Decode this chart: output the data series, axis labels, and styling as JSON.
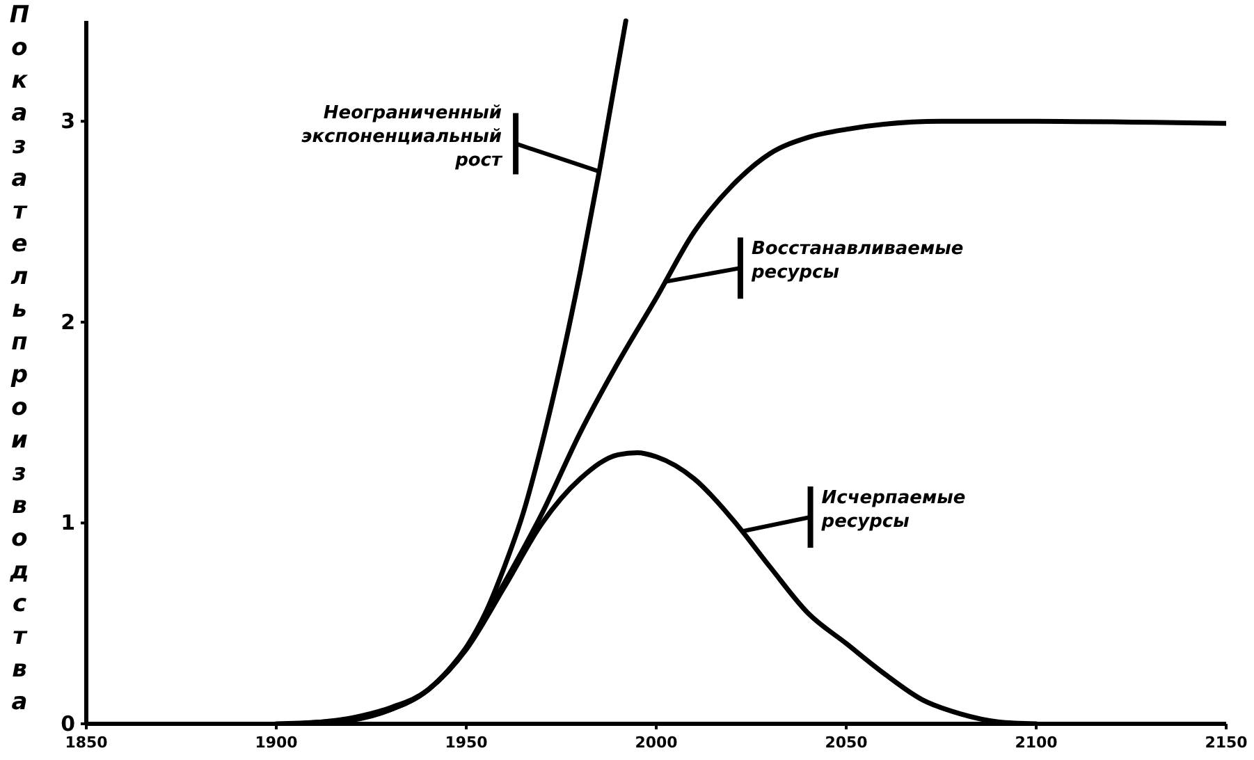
{
  "chart_data": {
    "type": "line",
    "ylabel": "Показатель производства",
    "xlim": [
      1850,
      2150
    ],
    "ylim": [
      0,
      3.5
    ],
    "xticks": [
      1850,
      1900,
      1950,
      2000,
      2050,
      2100,
      2150
    ],
    "yticks": [
      0,
      1,
      2,
      3
    ],
    "grid": false,
    "marker": "none",
    "line_style": "solid",
    "series": [
      {
        "color": "#000000",
        "x": [
          1905,
          1920,
          1930,
          1940,
          1950,
          1955,
          1960,
          1965,
          1970,
          1975,
          1980,
          1985,
          1992
        ],
        "values": [
          0,
          0.03,
          0.08,
          0.17,
          0.38,
          0.55,
          0.78,
          1.05,
          1.4,
          1.8,
          2.25,
          2.75,
          3.5
        ]
      },
      {
        "color": "#000000",
        "x": [
          1910,
          1920,
          1930,
          1940,
          1950,
          1960,
          1970,
          1980,
          1990,
          2000,
          2010,
          2020,
          2030,
          2040,
          2050,
          2075,
          2100,
          2150
        ],
        "values": [
          0,
          0.02,
          0.07,
          0.17,
          0.38,
          0.7,
          1.05,
          1.45,
          1.8,
          2.12,
          2.45,
          2.68,
          2.84,
          2.92,
          2.96,
          3.0,
          3.0,
          2.99
        ]
      },
      {
        "color": "#000000",
        "x": [
          1900,
          1920,
          1930,
          1940,
          1950,
          1960,
          1970,
          1980,
          1990,
          1995,
          2000,
          2010,
          2020,
          2030,
          2040,
          2050,
          2060,
          2070,
          2080,
          2090,
          2100
        ],
        "values": [
          0,
          0.02,
          0.07,
          0.17,
          0.37,
          0.68,
          1.0,
          1.22,
          1.34,
          1.35,
          1.33,
          1.22,
          1.02,
          0.78,
          0.55,
          0.4,
          0.25,
          0.12,
          0.05,
          0.01,
          0
        ]
      }
    ],
    "annotations": [
      {
        "text": "Неограниченный\nэкспоненциальный\nрост",
        "x": 1985,
        "y": 2.75
      },
      {
        "text": "Восстанавливаемые\nресурсы",
        "x": 2002,
        "y": 2.2
      },
      {
        "text": "Исчерпаемые\nресурсы",
        "x": 2023,
        "y": 0.96
      }
    ]
  }
}
